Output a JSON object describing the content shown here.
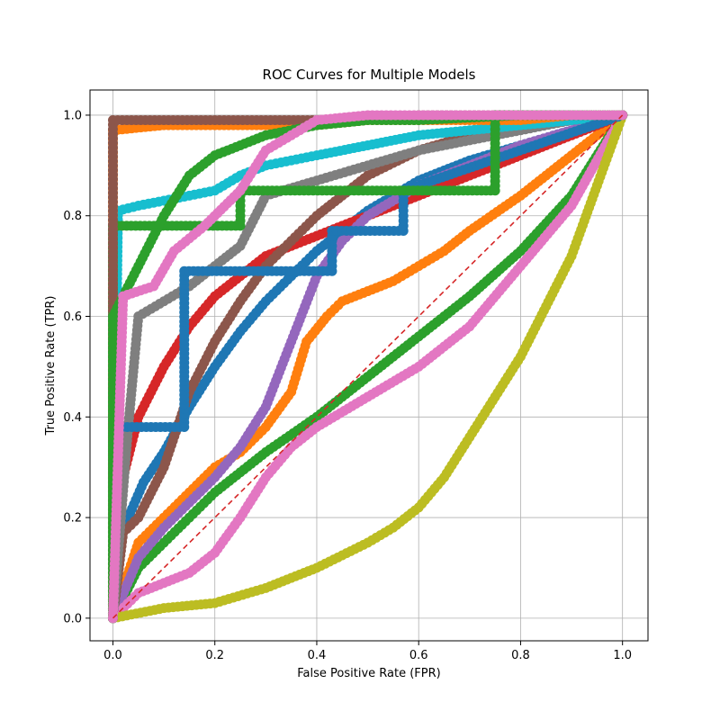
{
  "chart_data": {
    "type": "line",
    "title": "ROC Curves for Multiple Models",
    "xlabel": "False Positive Rate (FPR)",
    "ylabel": "True Positive Rate (TPR)",
    "xlim": [
      -0.045,
      1.05
    ],
    "ylim": [
      -0.045,
      1.05
    ],
    "xticks": [
      "0.0",
      "0.2",
      "0.4",
      "0.6",
      "0.8",
      "1.0"
    ],
    "yticks": [
      "0.0",
      "0.2",
      "0.4",
      "0.6",
      "0.8",
      "1.0"
    ],
    "xtick_values": [
      0,
      0.2,
      0.4,
      0.6,
      0.8,
      1.0
    ],
    "ytick_values": [
      0,
      0.2,
      0.4,
      0.6,
      0.8,
      1.0
    ],
    "grid": true,
    "marker": "circle",
    "series": [
      {
        "color": "#1f77b4",
        "x": [
          0,
          0.01,
          0.03,
          0.06,
          0.1,
          0.15,
          0.2,
          0.25,
          0.3,
          0.35,
          0.4,
          0.45,
          0.5,
          0.55,
          0.6,
          0.7,
          0.8,
          0.9,
          1.0
        ],
        "y": [
          0,
          0.14,
          0.2,
          0.27,
          0.33,
          0.42,
          0.5,
          0.57,
          0.63,
          0.68,
          0.73,
          0.77,
          0.81,
          0.84,
          0.87,
          0.91,
          0.94,
          0.97,
          1.0
        ]
      },
      {
        "color": "#ff7f0e",
        "x": [
          0,
          0.05,
          0.1,
          0.15,
          0.2,
          0.25,
          0.3,
          0.35,
          0.38,
          0.42,
          0.45,
          0.5,
          0.55,
          0.6,
          0.65,
          0.7,
          0.8,
          0.9,
          1.0
        ],
        "y": [
          0,
          0.15,
          0.2,
          0.25,
          0.3,
          0.33,
          0.38,
          0.45,
          0.55,
          0.6,
          0.63,
          0.65,
          0.67,
          0.7,
          0.73,
          0.77,
          0.84,
          0.92,
          1.0
        ]
      },
      {
        "color": "#2ca02c",
        "x": [
          0,
          0.05,
          0.1,
          0.15,
          0.2,
          0.3,
          0.4,
          0.5,
          0.6,
          0.7,
          0.8,
          0.9,
          1.0
        ],
        "y": [
          0,
          0.1,
          0.15,
          0.2,
          0.25,
          0.33,
          0.4,
          0.48,
          0.56,
          0.64,
          0.73,
          0.84,
          1.0
        ]
      },
      {
        "color": "#d62728",
        "x": [
          0,
          0.02,
          0.05,
          0.1,
          0.15,
          0.2,
          0.25,
          0.3,
          0.4,
          0.5,
          0.6,
          0.7,
          0.8,
          0.9,
          1.0
        ],
        "y": [
          0,
          0.28,
          0.4,
          0.5,
          0.58,
          0.64,
          0.68,
          0.72,
          0.76,
          0.8,
          0.84,
          0.88,
          0.92,
          0.96,
          1.0
        ]
      },
      {
        "color": "#9467bd",
        "x": [
          0,
          0.05,
          0.1,
          0.15,
          0.2,
          0.25,
          0.3,
          0.35,
          0.4,
          0.45,
          0.5,
          0.6,
          0.7,
          0.8,
          0.9,
          1.0
        ],
        "y": [
          0,
          0.12,
          0.18,
          0.23,
          0.28,
          0.34,
          0.42,
          0.55,
          0.68,
          0.75,
          0.8,
          0.86,
          0.9,
          0.94,
          0.97,
          1.0
        ]
      },
      {
        "color": "#8c564b",
        "x": [
          0,
          0.02,
          0.05,
          0.1,
          0.15,
          0.2,
          0.25,
          0.3,
          0.35,
          0.4,
          0.5,
          0.6,
          0.7,
          0.8,
          0.9,
          1.0
        ],
        "y": [
          0,
          0.17,
          0.2,
          0.3,
          0.45,
          0.55,
          0.63,
          0.7,
          0.75,
          0.8,
          0.88,
          0.93,
          0.96,
          0.98,
          0.99,
          1.0
        ]
      },
      {
        "color": "#e377c2",
        "x": [
          0,
          0.05,
          0.1,
          0.15,
          0.2,
          0.25,
          0.3,
          0.35,
          0.4,
          0.5,
          0.6,
          0.7,
          0.8,
          0.9,
          1.0
        ],
        "y": [
          0,
          0.05,
          0.07,
          0.09,
          0.13,
          0.2,
          0.28,
          0.34,
          0.38,
          0.44,
          0.5,
          0.58,
          0.7,
          0.82,
          1.0
        ]
      },
      {
        "color": "#7f7f7f",
        "x": [
          0,
          0.03,
          0.05,
          0.1,
          0.15,
          0.2,
          0.25,
          0.3,
          0.4,
          0.5,
          0.6,
          0.7,
          0.8,
          0.9,
          1.0
        ],
        "y": [
          0,
          0.38,
          0.6,
          0.63,
          0.66,
          0.7,
          0.74,
          0.84,
          0.87,
          0.9,
          0.93,
          0.95,
          0.97,
          0.99,
          1.0
        ]
      },
      {
        "color": "#bcbd22",
        "x": [
          0,
          0.1,
          0.2,
          0.3,
          0.4,
          0.5,
          0.55,
          0.6,
          0.65,
          0.7,
          0.75,
          0.8,
          0.85,
          0.9,
          0.95,
          1.0
        ],
        "y": [
          0,
          0.02,
          0.03,
          0.06,
          0.1,
          0.15,
          0.18,
          0.22,
          0.28,
          0.36,
          0.44,
          0.52,
          0.62,
          0.72,
          0.86,
          1.0
        ]
      },
      {
        "color": "#17becf",
        "x": [
          0,
          0.01,
          0.05,
          0.1,
          0.15,
          0.2,
          0.25,
          0.3,
          0.35,
          0.4,
          0.5,
          0.6,
          0.7,
          0.8,
          0.9,
          1.0
        ],
        "y": [
          0,
          0.81,
          0.82,
          0.83,
          0.84,
          0.85,
          0.88,
          0.9,
          0.91,
          0.92,
          0.94,
          0.96,
          0.97,
          0.98,
          0.99,
          1.0
        ]
      },
      {
        "color": "#1f77b4",
        "x": [
          0,
          0.0,
          0.14,
          0.14,
          0.43,
          0.43,
          0.57,
          0.57,
          1.0
        ],
        "y": [
          0,
          0.38,
          0.38,
          0.69,
          0.69,
          0.77,
          0.77,
          0.85,
          1.0
        ]
      },
      {
        "color": "#ff7f0e",
        "x": [
          0,
          0.0,
          0.1,
          0.2,
          0.3,
          0.4,
          0.5,
          0.6,
          0.7,
          0.8,
          0.9,
          1.0
        ],
        "y": [
          0,
          0.97,
          0.98,
          0.98,
          0.98,
          0.98,
          0.99,
          0.99,
          0.99,
          0.99,
          1.0,
          1.0
        ]
      },
      {
        "color": "#2ca02c",
        "x": [
          0,
          0.0,
          0.0,
          0.25,
          0.25,
          0.75,
          0.75,
          1.0
        ],
        "y": [
          0,
          0.5,
          0.78,
          0.78,
          0.85,
          0.85,
          1.0,
          1.0
        ]
      },
      {
        "color": "#8c564b",
        "x": [
          0,
          0.0,
          0.2,
          0.4,
          0.6,
          0.8,
          1.0
        ],
        "y": [
          0,
          0.99,
          0.99,
          0.99,
          1.0,
          1.0,
          1.0
        ]
      },
      {
        "color": "#2ca02c",
        "x": [
          0,
          0.0,
          0.05,
          0.1,
          0.15,
          0.2,
          0.25,
          0.3,
          0.4,
          0.5,
          0.6,
          0.8,
          1.0
        ],
        "y": [
          0,
          0.6,
          0.7,
          0.8,
          0.88,
          0.92,
          0.94,
          0.96,
          0.98,
          0.99,
          0.99,
          1.0,
          1.0
        ]
      },
      {
        "color": "#e377c2",
        "x": [
          0,
          0.02,
          0.08,
          0.12,
          0.18,
          0.25,
          0.3,
          0.35,
          0.4,
          0.5,
          0.6,
          0.8,
          1.0
        ],
        "y": [
          0,
          0.64,
          0.66,
          0.73,
          0.78,
          0.85,
          0.93,
          0.96,
          0.99,
          1.0,
          1.0,
          1.0,
          1.0
        ]
      },
      {
        "color": "#d62728",
        "x": [
          0,
          1.0
        ],
        "y": [
          0,
          1.0
        ]
      }
    ]
  }
}
